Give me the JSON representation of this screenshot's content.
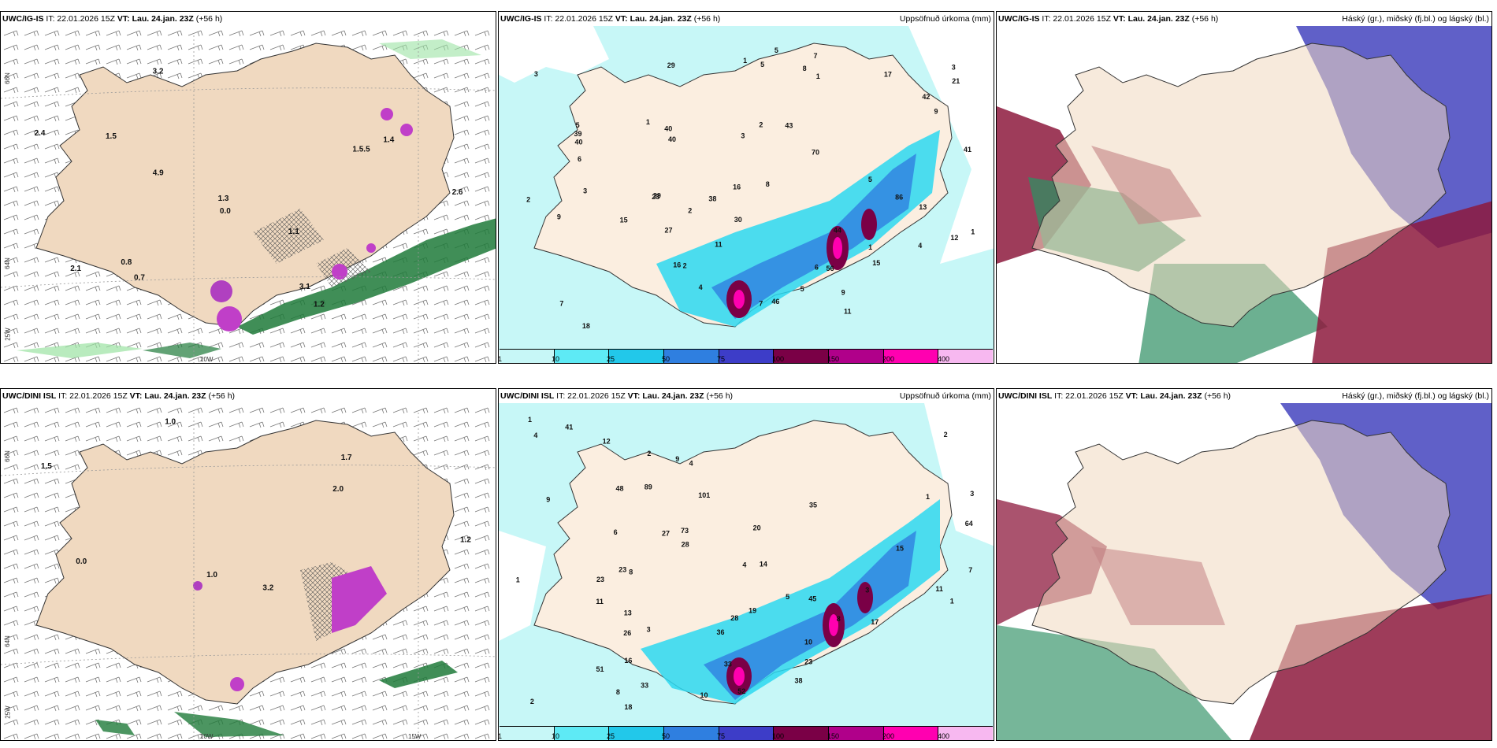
{
  "colors": {
    "land": "#f0d9c0",
    "sea_precip_light": "#c7f7f7",
    "sea_precip_mid": "#2bd8f0",
    "precip_blue": "#2f7fe0",
    "precip_dark": "#7a0046",
    "precip_magenta": "#ff00b0",
    "cloud_high": "#2d8f63",
    "cloud_mid": "#4f4fc2",
    "cloud_low": "#8d1a3d"
  },
  "panels": [
    {
      "id": "tl",
      "model": "UWC/IG-IS",
      "it": "IT: 22.01.2026 15Z",
      "vt_label": "VT:",
      "vt": "Lau. 24.jan. 23Z",
      "lead": "(+56 h)",
      "right_title": "",
      "numbers": [
        "1.2",
        "3.2",
        "0.8",
        "1.5",
        "1.4",
        "3.1",
        "2.6",
        "4.9",
        "0.0",
        "0.7",
        "2.1",
        "2.4",
        "1.3",
        "1.1",
        "1.5.5"
      ],
      "lat_labels": [
        "66N",
        "64N",
        "25W"
      ],
      "lon_labels": [
        "20W"
      ]
    },
    {
      "id": "tm",
      "model": "UWC/IG-IS",
      "it": "IT: 22.01.2026 15Z",
      "vt_label": "VT:",
      "vt": "Lau. 24.jan. 23Z",
      "lead": "(+56 h)",
      "right_title": "Uppsöfnuð úrkoma (mm)",
      "numbers": [
        "1",
        "2",
        "2",
        "1",
        "7",
        "3",
        "5",
        "3",
        "2",
        "3",
        "4",
        "11",
        "11",
        "3",
        "1",
        "1",
        "8",
        "8",
        "9",
        "6",
        "38",
        "44",
        "46",
        "21",
        "15",
        "56",
        "30",
        "39",
        "16",
        "40",
        "43",
        "42",
        "86",
        "41",
        "70",
        "27",
        "17",
        "12",
        "18",
        "4",
        "6",
        "5",
        "7",
        "7",
        "9",
        "15",
        "16",
        "13",
        "39",
        "23",
        "29",
        "40",
        "40",
        "5",
        "5",
        "9",
        "5",
        "1",
        "2"
      ],
      "colorbar": [
        "1",
        "10",
        "25",
        "50",
        "75",
        "100",
        "150",
        "200",
        "400"
      ]
    },
    {
      "id": "tr",
      "model": "UWC/IG-IS",
      "it": "IT: 22.01.2026 15Z",
      "vt_label": "VT:",
      "vt": "Lau. 24.jan. 23Z",
      "lead": "(+56 h)",
      "right_title": "Háský (gr.), miðský (fj.bl.) og lágský (bl.)"
    },
    {
      "id": "bl",
      "model": "UWC/DINI ISL",
      "it": "IT: 22.01.2026 15Z",
      "vt_label": "VT:",
      "vt": "Lau. 24.jan. 23Z",
      "lead": "(+56 h)",
      "right_title": "",
      "numbers": [
        "1.0",
        "1.7",
        "1.2",
        "1.0",
        "3.2",
        "0.0",
        "1.5",
        "2.0"
      ],
      "lat_labels": [
        "66N",
        "64N",
        "25W"
      ],
      "lon_labels": [
        "20W",
        "15W"
      ]
    },
    {
      "id": "bm",
      "model": "UWC/DINI ISL",
      "it": "IT: 22.01.2026 15Z",
      "vt_label": "VT:",
      "vt": "Lau. 24.jan. 23Z",
      "lead": "(+56 h)",
      "right_title": "Uppsöfnuð úrkoma (mm)",
      "numbers": [
        "4",
        "1",
        "1",
        "2",
        "3",
        "10",
        "4",
        "3",
        "2",
        "8",
        "26",
        "14",
        "18",
        "11",
        "28",
        "27",
        "36",
        "51",
        "89",
        "73",
        "64",
        "33",
        "33",
        "23",
        "23",
        "19",
        "13",
        "17",
        "10",
        "9",
        "5",
        "2",
        "1",
        "1",
        "4",
        "6",
        "12",
        "28",
        "23",
        "35",
        "48",
        "52",
        "45",
        "101",
        "41",
        "20",
        "16",
        "15",
        "38",
        "9",
        "7",
        "8",
        "8",
        "11",
        "3"
      ],
      "colorbar": [
        "1",
        "10",
        "25",
        "50",
        "75",
        "100",
        "150",
        "200",
        "400"
      ]
    },
    {
      "id": "br",
      "model": "UWC/DINI ISL",
      "it": "IT: 22.01.2026 15Z",
      "vt_label": "VT:",
      "vt": "Lau. 24.jan. 23Z",
      "lead": "(+56 h)",
      "right_title": "Háský (gr.), miðský (fj.bl.) og lágský (bl.)"
    }
  ]
}
